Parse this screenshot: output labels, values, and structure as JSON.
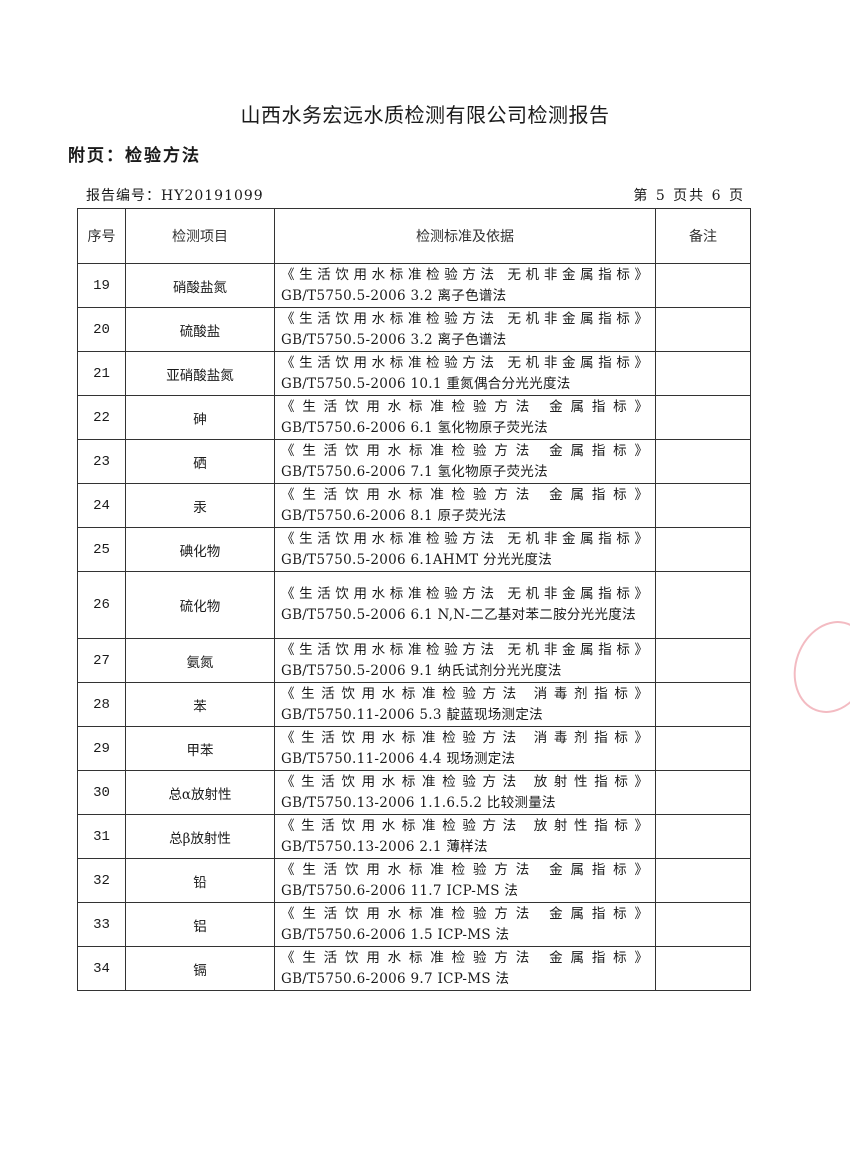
{
  "header": {
    "title": "山西水务宏远水质检测有限公司检测报告",
    "subtitle": "附页：检验方法",
    "report_number": "报告编号：HY20191099",
    "page_info": "第 5 页共 6 页"
  },
  "table": {
    "columns": [
      "序号",
      "检测项目",
      "检测标准及依据",
      "备注"
    ],
    "rows": [
      {
        "no": "19",
        "item": "硝酸盐氮",
        "line1": "《生活饮用水标准检验方法 无机非金属指标》",
        "line2": "GB/T5750.5-2006  3.2 离子色谱法",
        "note": ""
      },
      {
        "no": "20",
        "item": "硫酸盐",
        "line1": "《生活饮用水标准检验方法 无机非金属指标》",
        "line2": "GB/T5750.5-2006  3.2 离子色谱法",
        "note": ""
      },
      {
        "no": "21",
        "item": "亚硝酸盐氮",
        "line1": "《生活饮用水标准检验方法 无机非金属指标》",
        "line2": "GB/T5750.5-2006  10.1 重氮偶合分光光度法",
        "note": ""
      },
      {
        "no": "22",
        "item": "砷",
        "line1": "《生活饮用水标准检验方法  金属指标》",
        "line2": "GB/T5750.6-2006  6.1 氢化物原子荧光法",
        "note": ""
      },
      {
        "no": "23",
        "item": "硒",
        "line1": "《生活饮用水标准检验方法  金属指标》",
        "line2": "GB/T5750.6-2006  7.1 氢化物原子荧光法",
        "note": ""
      },
      {
        "no": "24",
        "item": "汞",
        "line1": "《生活饮用水标准检验方法  金属指标》",
        "line2": "GB/T5750.6-2006  8.1 原子荧光法",
        "note": ""
      },
      {
        "no": "25",
        "item": "碘化物",
        "line1": "《生活饮用水标准检验方法 无机非金属指标》",
        "line2": "GB/T5750.5-2006  6.1AHMT 分光光度法",
        "note": ""
      },
      {
        "no": "26",
        "item": "硫化物",
        "line1": "《生活饮用水标准检验方法 无机非金属指标》",
        "line2": "GB/T5750.5-2006 6.1 N,N-二乙基对苯二胺分光光度法",
        "note": ""
      },
      {
        "no": "27",
        "item": "氨氮",
        "line1": "《生活饮用水标准检验方法 无机非金属指标》",
        "line2": "GB/T5750.5-2006  9.1 纳氏试剂分光光度法",
        "note": ""
      },
      {
        "no": "28",
        "item": "苯",
        "line1": "《生活饮用水标准检验方法  消毒剂指标》",
        "line2": "GB/T5750.11-2006  5.3 靛蓝现场测定法",
        "note": ""
      },
      {
        "no": "29",
        "item": "甲苯",
        "line1": "《生活饮用水标准检验方法  消毒剂指标》",
        "line2": "GB/T5750.11-2006  4.4 现场测定法",
        "note": ""
      },
      {
        "no": "30",
        "item": "总α放射性",
        "line1": "《生活饮用水标准检验方法  放射性指标》",
        "line2": "GB/T5750.13-2006  1.1.6.5.2 比较测量法",
        "note": ""
      },
      {
        "no": "31",
        "item": "总β放射性",
        "line1": "《生活饮用水标准检验方法  放射性指标》",
        "line2": "GB/T5750.13-2006  2.1 薄样法",
        "note": ""
      },
      {
        "no": "32",
        "item": "铅",
        "line1": "《生活饮用水标准检验方法  金属指标》",
        "line2": "GB/T5750.6-2006  11.7 ICP-MS 法",
        "note": ""
      },
      {
        "no": "33",
        "item": "铝",
        "line1": "《生活饮用水标准检验方法  金属指标》",
        "line2": "GB/T5750.6-2006  1.5 ICP-MS 法",
        "note": ""
      },
      {
        "no": "34",
        "item": "镉",
        "line1": "《生活饮用水标准检验方法  金属指标》",
        "line2": "GB/T5750.6-2006  9.7 ICP-MS 法",
        "note": ""
      }
    ]
  },
  "colors": {
    "stamp": "#dc3c50"
  }
}
